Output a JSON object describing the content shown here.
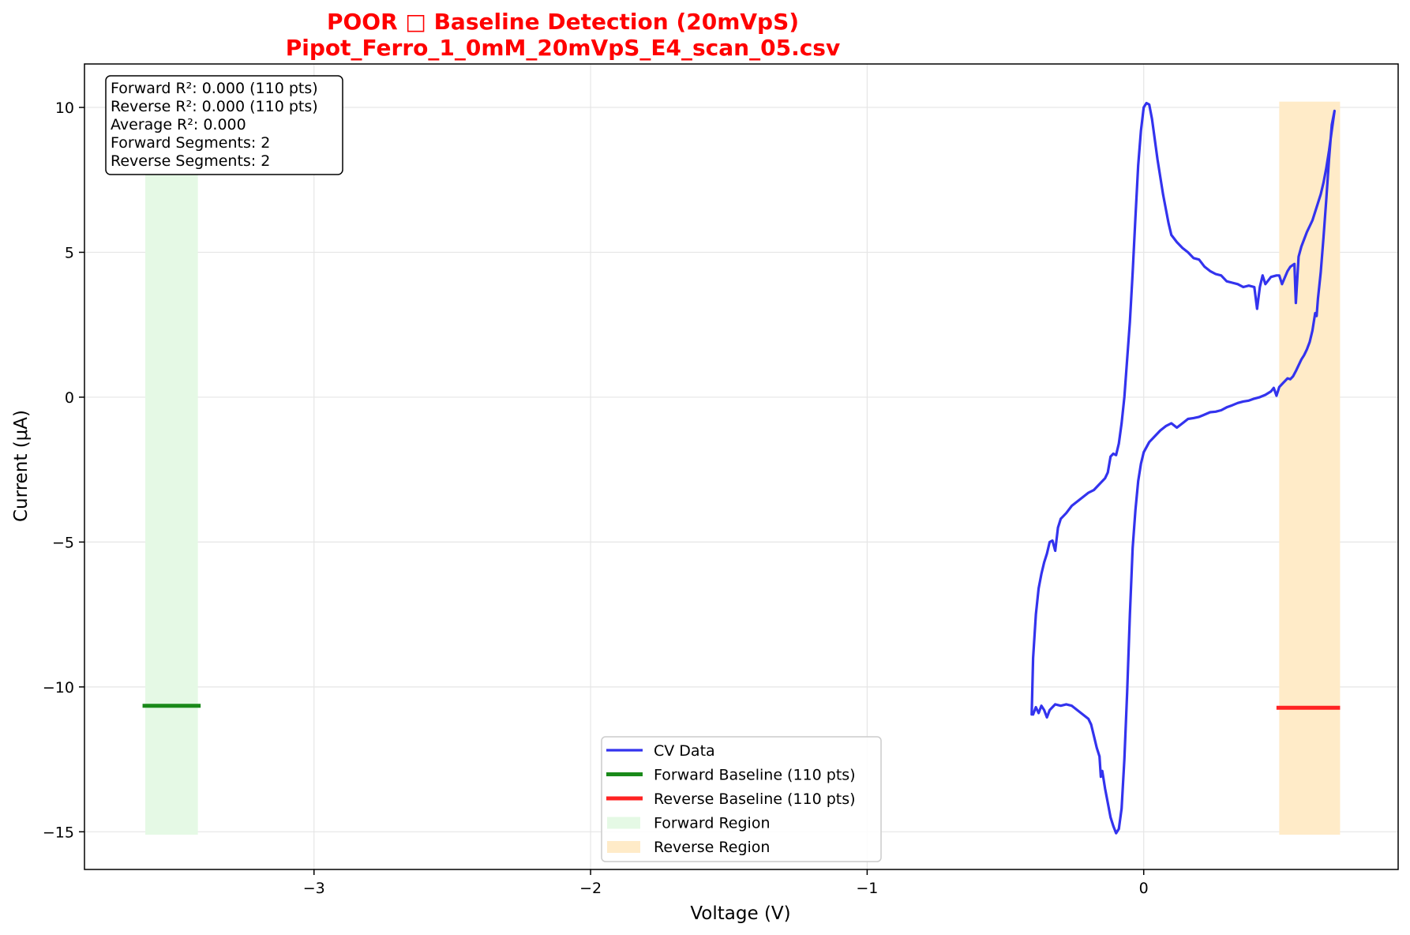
{
  "colors": {
    "cv": "#3333ee",
    "forward_baseline": "#1a8a1a",
    "reverse_baseline": "#ff2222",
    "forward_region": "#e5f9e5",
    "reverse_region": "#ffebc8",
    "title": "#ff0000",
    "grid": "#e6e6e6"
  },
  "chart_data": {
    "type": "line",
    "title_line1": "POOR □ Baseline Detection (20mVpS)",
    "title_line2": "Pipot_Ferro_1_0mM_20mVpS_E4_scan_05.csv",
    "xlabel": "Voltage (V)",
    "ylabel": "Current (μA)",
    "xlim": [
      -3.83,
      0.92
    ],
    "ylim": [
      -16.3,
      11.5
    ],
    "x_ticks": [
      -3,
      -2,
      -1,
      0
    ],
    "x_tick_labels": [
      "−3",
      "−2",
      "−1",
      "0"
    ],
    "y_ticks": [
      -15,
      -10,
      -5,
      0,
      5,
      10
    ],
    "y_tick_labels": [
      "−15",
      "−10",
      "−5",
      "0",
      "5",
      "10"
    ],
    "grid": true,
    "legend_position": "lower-center",
    "info_box": {
      "position": "top-left",
      "lines": [
        "Forward R²: 0.000 (110 pts)",
        "Reverse R²: 0.000 (110 pts)",
        "Average R²: 0.000",
        "Forward Segments: 2",
        "Reverse Segments: 2"
      ]
    },
    "legend": [
      {
        "label": "CV Data",
        "kind": "line",
        "color_key": "cv"
      },
      {
        "label": "Forward Baseline (110 pts)",
        "kind": "line",
        "color_key": "forward_baseline"
      },
      {
        "label": "Reverse Baseline (110 pts)",
        "kind": "line",
        "color_key": "reverse_baseline"
      },
      {
        "label": "Forward Region",
        "kind": "patch",
        "color_key": "forward_region"
      },
      {
        "label": "Reverse Region",
        "kind": "patch",
        "color_key": "reverse_region"
      }
    ],
    "regions": [
      {
        "name": "Forward Region",
        "x": [
          -3.61,
          -3.42
        ],
        "y": [
          -15.1,
          10.2
        ],
        "color_key": "forward_region"
      },
      {
        "name": "Reverse Region",
        "x": [
          0.49,
          0.71
        ],
        "y": [
          -15.1,
          10.2
        ],
        "color_key": "reverse_region"
      }
    ],
    "baselines": [
      {
        "name": "Forward Baseline (110 pts)",
        "x": [
          -3.62,
          -3.41
        ],
        "y": [
          -10.65,
          -10.65
        ],
        "color_key": "forward_baseline"
      },
      {
        "name": "Reverse Baseline (110 pts)",
        "x": [
          0.48,
          0.71
        ],
        "y": [
          -10.72,
          -10.72
        ],
        "color_key": "reverse_baseline"
      }
    ],
    "series": [
      {
        "name": "CV Data",
        "color_key": "cv",
        "points": [
          [
            -0.4,
            -10.95
          ],
          [
            -0.39,
            -10.7
          ],
          [
            -0.38,
            -10.9
          ],
          [
            -0.37,
            -10.65
          ],
          [
            -0.36,
            -10.8
          ],
          [
            -0.35,
            -11.05
          ],
          [
            -0.34,
            -10.8
          ],
          [
            -0.33,
            -10.7
          ],
          [
            -0.32,
            -10.6
          ],
          [
            -0.3,
            -10.65
          ],
          [
            -0.28,
            -10.6
          ],
          [
            -0.26,
            -10.65
          ],
          [
            -0.24,
            -10.8
          ],
          [
            -0.22,
            -10.95
          ],
          [
            -0.2,
            -11.1
          ],
          [
            -0.19,
            -11.3
          ],
          [
            -0.18,
            -11.7
          ],
          [
            -0.17,
            -12.1
          ],
          [
            -0.16,
            -12.4
          ],
          [
            -0.155,
            -13.1
          ],
          [
            -0.15,
            -12.9
          ],
          [
            -0.14,
            -13.5
          ],
          [
            -0.13,
            -14.0
          ],
          [
            -0.12,
            -14.5
          ],
          [
            -0.11,
            -14.8
          ],
          [
            -0.1,
            -15.05
          ],
          [
            -0.09,
            -14.9
          ],
          [
            -0.08,
            -14.2
          ],
          [
            -0.07,
            -12.5
          ],
          [
            -0.06,
            -10.2
          ],
          [
            -0.05,
            -7.5
          ],
          [
            -0.04,
            -5.2
          ],
          [
            -0.03,
            -3.9
          ],
          [
            -0.02,
            -2.9
          ],
          [
            -0.01,
            -2.3
          ],
          [
            0.0,
            -1.9
          ],
          [
            0.02,
            -1.55
          ],
          [
            0.04,
            -1.35
          ],
          [
            0.06,
            -1.15
          ],
          [
            0.08,
            -1.0
          ],
          [
            0.1,
            -0.9
          ],
          [
            0.12,
            -1.05
          ],
          [
            0.14,
            -0.9
          ],
          [
            0.16,
            -0.75
          ],
          [
            0.18,
            -0.72
          ],
          [
            0.2,
            -0.68
          ],
          [
            0.22,
            -0.6
          ],
          [
            0.24,
            -0.52
          ],
          [
            0.26,
            -0.5
          ],
          [
            0.28,
            -0.45
          ],
          [
            0.3,
            -0.35
          ],
          [
            0.32,
            -0.28
          ],
          [
            0.34,
            -0.2
          ],
          [
            0.36,
            -0.15
          ],
          [
            0.38,
            -0.12
          ],
          [
            0.4,
            -0.05
          ],
          [
            0.42,
            0.0
          ],
          [
            0.44,
            0.08
          ],
          [
            0.46,
            0.2
          ],
          [
            0.47,
            0.32
          ],
          [
            0.48,
            0.05
          ],
          [
            0.49,
            0.35
          ],
          [
            0.5,
            0.45
          ],
          [
            0.51,
            0.55
          ],
          [
            0.52,
            0.65
          ],
          [
            0.53,
            0.62
          ],
          [
            0.54,
            0.72
          ],
          [
            0.55,
            0.9
          ],
          [
            0.56,
            1.1
          ],
          [
            0.57,
            1.3
          ],
          [
            0.58,
            1.45
          ],
          [
            0.59,
            1.65
          ],
          [
            0.6,
            1.9
          ],
          [
            0.61,
            2.3
          ],
          [
            0.62,
            2.9
          ],
          [
            0.625,
            2.8
          ],
          [
            0.63,
            3.4
          ],
          [
            0.64,
            4.3
          ],
          [
            0.65,
            5.5
          ],
          [
            0.66,
            6.8
          ],
          [
            0.67,
            8.2
          ],
          [
            0.68,
            9.4
          ],
          [
            0.69,
            9.88
          ],
          [
            0.68,
            9.2
          ],
          [
            0.67,
            8.5
          ],
          [
            0.66,
            7.9
          ],
          [
            0.65,
            7.4
          ],
          [
            0.64,
            7.0
          ],
          [
            0.63,
            6.7
          ],
          [
            0.62,
            6.4
          ],
          [
            0.61,
            6.1
          ],
          [
            0.6,
            5.9
          ],
          [
            0.59,
            5.7
          ],
          [
            0.58,
            5.45
          ],
          [
            0.57,
            5.2
          ],
          [
            0.56,
            4.85
          ],
          [
            0.55,
            3.25
          ],
          [
            0.545,
            4.6
          ],
          [
            0.53,
            4.5
          ],
          [
            0.52,
            4.35
          ],
          [
            0.5,
            3.9
          ],
          [
            0.49,
            4.2
          ],
          [
            0.48,
            4.2
          ],
          [
            0.46,
            4.15
          ],
          [
            0.44,
            3.9
          ],
          [
            0.43,
            4.2
          ],
          [
            0.42,
            3.8
          ],
          [
            0.41,
            3.05
          ],
          [
            0.4,
            3.8
          ],
          [
            0.38,
            3.85
          ],
          [
            0.36,
            3.8
          ],
          [
            0.34,
            3.9
          ],
          [
            0.32,
            3.95
          ],
          [
            0.3,
            4.0
          ],
          [
            0.28,
            4.2
          ],
          [
            0.26,
            4.25
          ],
          [
            0.24,
            4.35
          ],
          [
            0.22,
            4.5
          ],
          [
            0.2,
            4.75
          ],
          [
            0.18,
            4.8
          ],
          [
            0.16,
            5.0
          ],
          [
            0.14,
            5.15
          ],
          [
            0.12,
            5.35
          ],
          [
            0.1,
            5.6
          ],
          [
            0.09,
            6.0
          ],
          [
            0.08,
            6.5
          ],
          [
            0.07,
            7.0
          ],
          [
            0.06,
            7.6
          ],
          [
            0.05,
            8.2
          ],
          [
            0.04,
            8.9
          ],
          [
            0.03,
            9.6
          ],
          [
            0.02,
            10.1
          ],
          [
            0.01,
            10.15
          ],
          [
            0.0,
            10.0
          ],
          [
            -0.01,
            9.2
          ],
          [
            -0.02,
            8.0
          ],
          [
            -0.03,
            6.2
          ],
          [
            -0.04,
            4.3
          ],
          [
            -0.05,
            2.6
          ],
          [
            -0.06,
            1.3
          ],
          [
            -0.07,
            0.0
          ],
          [
            -0.08,
            -0.9
          ],
          [
            -0.09,
            -1.6
          ],
          [
            -0.1,
            -2.0
          ],
          [
            -0.11,
            -1.95
          ],
          [
            -0.12,
            -2.05
          ],
          [
            -0.13,
            -2.6
          ],
          [
            -0.14,
            -2.8
          ],
          [
            -0.16,
            -3.0
          ],
          [
            -0.18,
            -3.2
          ],
          [
            -0.2,
            -3.3
          ],
          [
            -0.22,
            -3.45
          ],
          [
            -0.24,
            -3.6
          ],
          [
            -0.26,
            -3.75
          ],
          [
            -0.28,
            -4.0
          ],
          [
            -0.3,
            -4.2
          ],
          [
            -0.31,
            -4.5
          ],
          [
            -0.32,
            -5.3
          ],
          [
            -0.33,
            -4.95
          ],
          [
            -0.34,
            -5.0
          ],
          [
            -0.35,
            -5.4
          ],
          [
            -0.36,
            -5.7
          ],
          [
            -0.37,
            -6.1
          ],
          [
            -0.38,
            -6.6
          ],
          [
            -0.39,
            -7.5
          ],
          [
            -0.4,
            -9.0
          ],
          [
            -0.405,
            -10.95
          ]
        ]
      }
    ]
  }
}
